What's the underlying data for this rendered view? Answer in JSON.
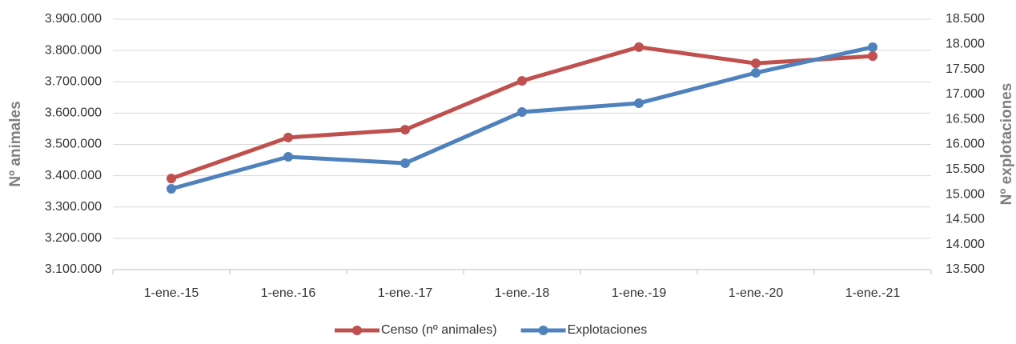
{
  "chart_data": {
    "type": "line",
    "categories": [
      "1-ene.-15",
      "1-ene.-16",
      "1-ene.-17",
      "1-ene.-18",
      "1-ene.-19",
      "1-ene.-20",
      "1-ene.-21"
    ],
    "series": [
      {
        "name": "Censo (nº animales)",
        "color": "#c0504d",
        "values": [
          3391000,
          3522000,
          3547000,
          3703000,
          3811000,
          3759000,
          3782000
        ]
      },
      {
        "name": "Explotaciones",
        "color": "#4f81bd",
        "axis": "y2",
        "values": [
          15113,
          15752,
          15625,
          16647,
          16823,
          17430,
          17941
        ]
      }
    ],
    "ylabel": "Nº animales",
    "y2label": "Nº explotaciones",
    "ylim": [
      3100000,
      3900000
    ],
    "yticks": [
      {
        "value": 3100000,
        "label": "3.100.000"
      },
      {
        "value": 3200000,
        "label": "3.200.000"
      },
      {
        "value": 3300000,
        "label": "3.300.000"
      },
      {
        "value": 3400000,
        "label": "3.400.000"
      },
      {
        "value": 3500000,
        "label": "3.500.000"
      },
      {
        "value": 3600000,
        "label": "3.600.000"
      },
      {
        "value": 3700000,
        "label": "3.700.000"
      },
      {
        "value": 3800000,
        "label": "3.800.000"
      },
      {
        "value": 3900000,
        "label": "3.900.000"
      }
    ],
    "y2lim": [
      13500,
      18500
    ],
    "y2ticks": [
      {
        "value": 13500,
        "label": "13.500"
      },
      {
        "value": 14000,
        "label": "14.000"
      },
      {
        "value": 14500,
        "label": "14.500"
      },
      {
        "value": 15000,
        "label": "15.000"
      },
      {
        "value": 15500,
        "label": "15.500"
      },
      {
        "value": 16000,
        "label": "16.000"
      },
      {
        "value": 16500,
        "label": "16.500"
      },
      {
        "value": 17000,
        "label": "17.000"
      },
      {
        "value": 17500,
        "label": "17.500"
      },
      {
        "value": 18000,
        "label": "18.000"
      },
      {
        "value": 18500,
        "label": "18.500"
      }
    ],
    "grid": true,
    "legend": "bottom"
  }
}
